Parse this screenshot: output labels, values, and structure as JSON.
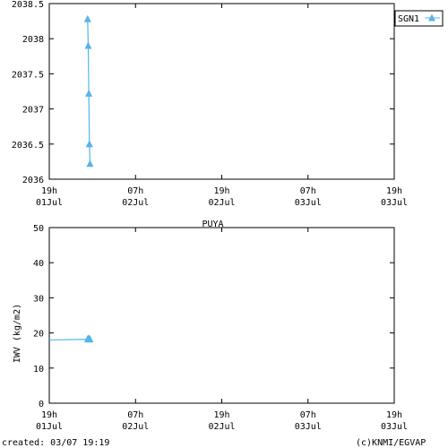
{
  "chart_data": [
    {
      "type": "line",
      "title": "",
      "ylabel": "",
      "ylim": [
        2036,
        2038.5
      ],
      "y_ticks": [
        "2036",
        "2036.5",
        "2037",
        "2037.5",
        "2038",
        "2038.5"
      ],
      "x_range": [
        "01Jul 19h",
        "03Jul 19h"
      ],
      "x_ticks": [
        {
          "top": "19h",
          "bottom": "01Jul"
        },
        {
          "top": "07h",
          "bottom": "02Jul"
        },
        {
          "top": "19h",
          "bottom": "02Jul"
        },
        {
          "top": "07h",
          "bottom": "03Jul"
        },
        {
          "top": "19h",
          "bottom": "03Jul"
        }
      ],
      "grid": false,
      "legend_position": "top-right",
      "series": [
        {
          "name": "SGN1",
          "color": "#56b4e9",
          "marker": "triangle",
          "points": [
            {
              "x": "02Jul 00:20",
              "y": 2038.28
            },
            {
              "x": "02Jul 00:25",
              "y": 2037.9
            },
            {
              "x": "02Jul 00:30",
              "y": 2037.22
            },
            {
              "x": "02Jul 00:35",
              "y": 2036.5
            },
            {
              "x": "02Jul 00:40",
              "y": 2036.22
            }
          ]
        }
      ]
    },
    {
      "type": "line",
      "title": "PUYA",
      "ylabel": "IWV (kg/m2)",
      "ylim": [
        0,
        50
      ],
      "y_ticks": [
        "0",
        "10",
        "20",
        "30",
        "40",
        "50"
      ],
      "x_range": [
        "01Jul 19h",
        "03Jul 19h"
      ],
      "x_ticks": [
        {
          "top": "19h",
          "bottom": "01Jul"
        },
        {
          "top": "07h",
          "bottom": "02Jul"
        },
        {
          "top": "19h",
          "bottom": "02Jul"
        },
        {
          "top": "07h",
          "bottom": "03Jul"
        },
        {
          "top": "19h",
          "bottom": "03Jul"
        }
      ],
      "grid": false,
      "series": [
        {
          "name": "",
          "color": "#56b4e9",
          "marker": "triangle",
          "points": [
            {
              "x": "01Jul 19:00",
              "y": 18.0
            },
            {
              "x": "02Jul 00:20",
              "y": 18.2
            },
            {
              "x": "02Jul 00:25",
              "y": 18.3
            },
            {
              "x": "02Jul 00:30",
              "y": 18.3
            },
            {
              "x": "02Jul 00:35",
              "y": 18.3
            },
            {
              "x": "02Jul 00:40",
              "y": 18.2
            }
          ]
        }
      ]
    }
  ],
  "footer": {
    "created": "created: 03/07 19:19",
    "credit": "(c)KNMI/EGVAP"
  }
}
